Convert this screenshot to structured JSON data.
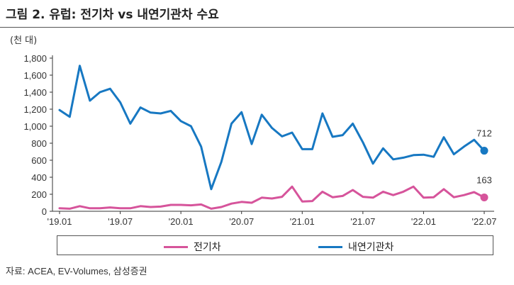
{
  "title": "그림 2. 유럽: 전기차 vs 내연기관차 수요",
  "unit_label": "(천 대)",
  "source": "자료: ACEA, EV-Volumes, 삼성증권",
  "colors": {
    "ev": "#D6549B",
    "ice": "#1778C2",
    "axis": "#333333"
  },
  "chart_data": {
    "type": "line",
    "title": "그림 2. 유럽: 전기차 vs 내연기관차 수요",
    "ylabel": "(천 대)",
    "xlabel": "",
    "ylim": [
      0,
      1800
    ],
    "yticks": [
      0,
      200,
      400,
      600,
      800,
      1000,
      1200,
      1400,
      1600,
      1800
    ],
    "ytick_labels": [
      "0",
      "200",
      "400",
      "600",
      "800",
      "1,000",
      "1,200",
      "1,400",
      "1,600",
      "1,800"
    ],
    "x": [
      "2019-01",
      "2019-02",
      "2019-03",
      "2019-04",
      "2019-05",
      "2019-06",
      "2019-07",
      "2019-08",
      "2019-09",
      "2019-10",
      "2019-11",
      "2019-12",
      "2020-01",
      "2020-02",
      "2020-03",
      "2020-04",
      "2020-05",
      "2020-06",
      "2020-07",
      "2020-08",
      "2020-09",
      "2020-10",
      "2020-11",
      "2020-12",
      "2021-01",
      "2021-02",
      "2021-03",
      "2021-04",
      "2021-05",
      "2021-06",
      "2021-07",
      "2021-08",
      "2021-09",
      "2021-10",
      "2021-11",
      "2021-12",
      "2022-01",
      "2022-02",
      "2022-03",
      "2022-04",
      "2022-05",
      "2022-06",
      "2022-07"
    ],
    "x_tick_labels": [
      "'19.01",
      "'19.07",
      "'20.01",
      "'20.07",
      "'21.01",
      "'21.07",
      "'22.01",
      "'22.07"
    ],
    "x_tick_index": [
      0,
      6,
      12,
      18,
      24,
      30,
      36,
      42
    ],
    "grid": false,
    "legend_position": "bottom",
    "series": [
      {
        "name": "전기차",
        "key": "ev",
        "values": [
          35,
          30,
          60,
          35,
          35,
          45,
          35,
          35,
          60,
          50,
          55,
          75,
          75,
          70,
          80,
          30,
          50,
          90,
          110,
          100,
          160,
          150,
          170,
          290,
          115,
          120,
          230,
          165,
          180,
          250,
          170,
          160,
          230,
          190,
          230,
          290,
          160,
          165,
          260,
          165,
          190,
          225,
          163
        ],
        "end_label": "163"
      },
      {
        "name": "내연기관차",
        "key": "ice",
        "values": [
          1190,
          1110,
          1710,
          1300,
          1400,
          1440,
          1280,
          1030,
          1220,
          1160,
          1150,
          1180,
          1060,
          1000,
          760,
          260,
          580,
          1030,
          1165,
          790,
          1135,
          980,
          880,
          925,
          730,
          730,
          1150,
          875,
          895,
          1030,
          810,
          560,
          740,
          610,
          630,
          660,
          665,
          640,
          870,
          670,
          760,
          840,
          712
        ],
        "end_label": "712"
      }
    ]
  }
}
